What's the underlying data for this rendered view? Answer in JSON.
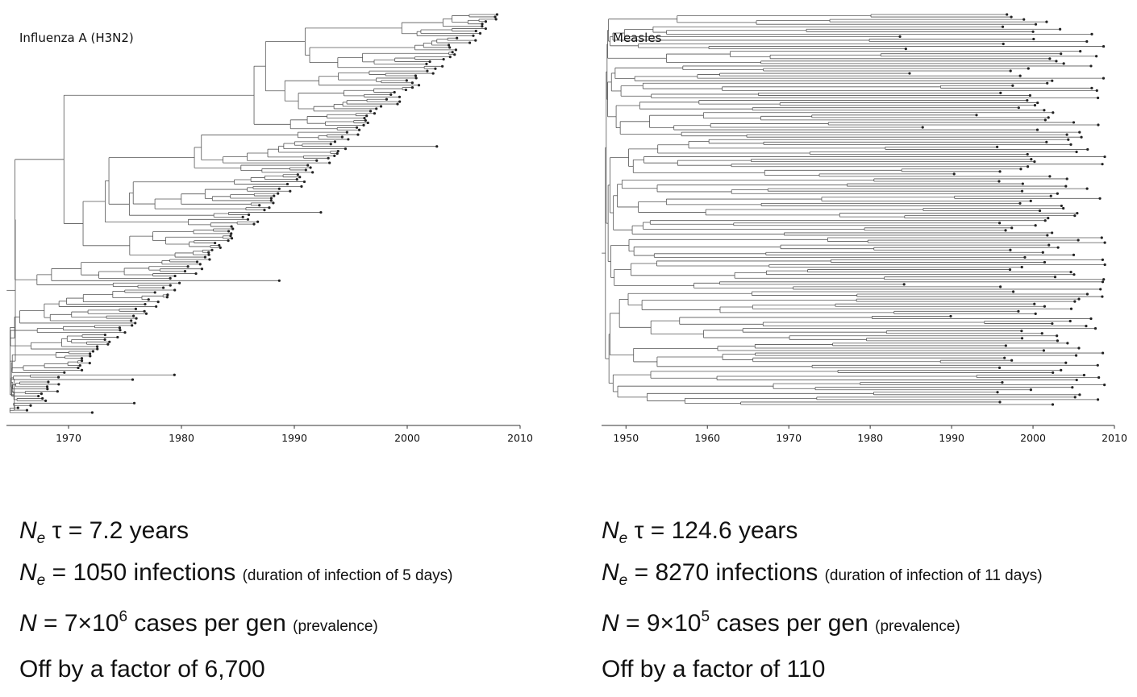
{
  "panels": [
    {
      "id": "flu",
      "title": "Influenza A (H3N2)",
      "axis_ticks": [
        "1970",
        "1980",
        "1990",
        "2000",
        "2010"
      ],
      "axis_tick_values": [
        1970,
        1980,
        1990,
        2000,
        2010
      ],
      "axis_range": [
        1964.5,
        2010
      ],
      "tip_range": [
        1966,
        2008
      ],
      "tip_count": 170,
      "shape": "ladder",
      "line_color": "#555555",
      "tip_color": "#222222"
    },
    {
      "id": "measles",
      "title": "Measles",
      "axis_ticks": [
        "1950",
        "1960",
        "1970",
        "1980",
        "1990",
        "2000",
        "2010"
      ],
      "axis_tick_values": [
        1950,
        1960,
        1970,
        1980,
        1990,
        2000,
        2010
      ],
      "axis_range": [
        1947,
        2010
      ],
      "tip_range": [
        1979,
        2009
      ],
      "tip_count": 160,
      "shape": "deep",
      "line_color": "#555555",
      "tip_color": "#222222"
    }
  ],
  "stats": {
    "flu": {
      "ne_tau_symbol": "N",
      "ne_sub": "e",
      "ne_tau_rest": " τ = 7.2 years",
      "ne_symbol": "N",
      "ne_sub2": "e",
      "ne_value": " = 1050 infections ",
      "ne_note": "(duration of infection of 5 days)",
      "n_symbol": "N",
      "n_value": " = 7×10",
      "n_exp": "6",
      "n_rest": " cases per gen ",
      "n_note": "(prevalence)",
      "factor": "Off by a factor of 6,700"
    },
    "measles": {
      "ne_tau_symbol": "N",
      "ne_sub": "e",
      "ne_tau_rest": " τ = 124.6 years",
      "ne_symbol": "N",
      "ne_sub2": "e",
      "ne_value": " = 8270 infections ",
      "ne_note": "(duration of infection of 11 days)",
      "n_symbol": "N",
      "n_value": " = 9×10",
      "n_exp": "5",
      "n_rest": " cases per gen ",
      "n_note": "(prevalence)",
      "factor": "Off by a factor of 110"
    }
  }
}
